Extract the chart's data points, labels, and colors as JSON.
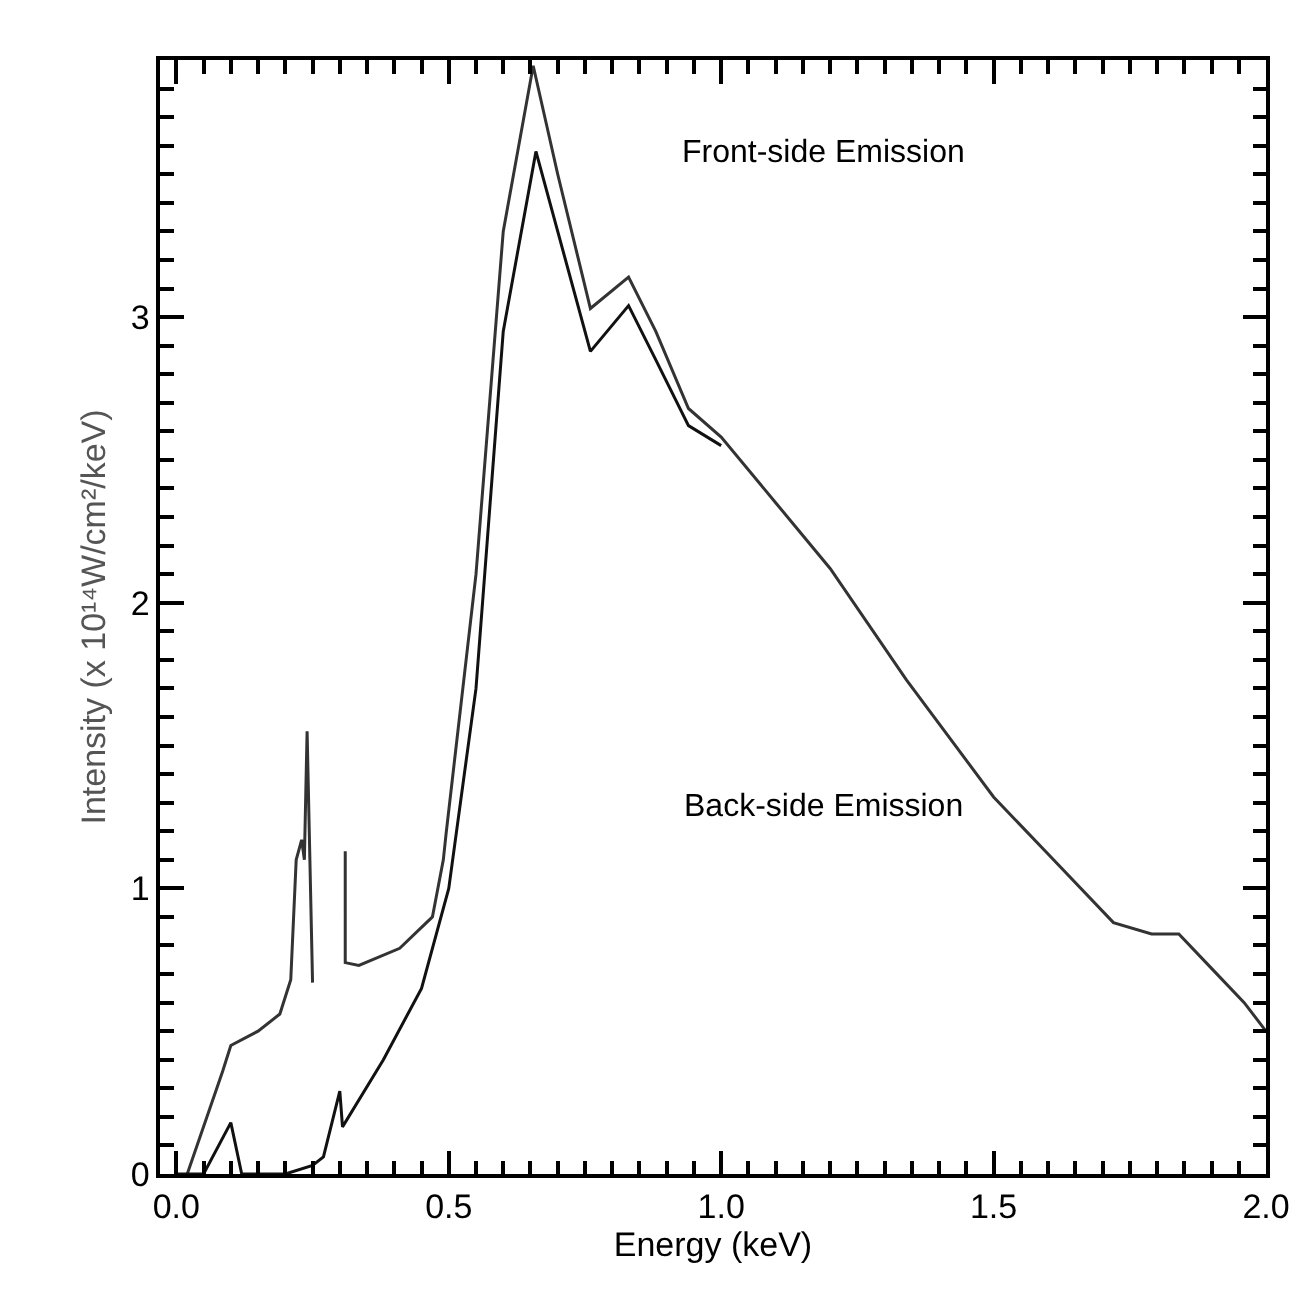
{
  "chart_data": {
    "type": "line",
    "xlabel": "Energy (keV)",
    "ylabel": "Intensity (x 10¹⁴W/cm²/keV)",
    "xlim": [
      -0.03,
      2.0
    ],
    "ylim": [
      0,
      3.9
    ],
    "xticks": [
      {
        "value": 0.0,
        "label": "0.0"
      },
      {
        "value": 0.05,
        "label": null
      },
      {
        "value": 0.1,
        "label": null
      },
      {
        "value": 0.15,
        "label": null
      },
      {
        "value": 0.2,
        "label": null
      },
      {
        "value": 0.25,
        "label": null
      },
      {
        "value": 0.3,
        "label": null
      },
      {
        "value": 0.35,
        "label": null
      },
      {
        "value": 0.4,
        "label": null
      },
      {
        "value": 0.45,
        "label": null
      },
      {
        "value": 0.5,
        "label": "0.5"
      },
      {
        "value": 0.55,
        "label": null
      },
      {
        "value": 0.6,
        "label": null
      },
      {
        "value": 0.65,
        "label": null
      },
      {
        "value": 0.7,
        "label": null
      },
      {
        "value": 0.75,
        "label": null
      },
      {
        "value": 0.8,
        "label": null
      },
      {
        "value": 0.85,
        "label": null
      },
      {
        "value": 0.9,
        "label": null
      },
      {
        "value": 0.95,
        "label": null
      },
      {
        "value": 1.0,
        "label": "1.0"
      },
      {
        "value": 1.05,
        "label": null
      },
      {
        "value": 1.1,
        "label": null
      },
      {
        "value": 1.15,
        "label": null
      },
      {
        "value": 1.2,
        "label": null
      },
      {
        "value": 1.25,
        "label": null
      },
      {
        "value": 1.3,
        "label": null
      },
      {
        "value": 1.35,
        "label": null
      },
      {
        "value": 1.4,
        "label": null
      },
      {
        "value": 1.45,
        "label": null
      },
      {
        "value": 1.5,
        "label": "1.5"
      },
      {
        "value": 1.55,
        "label": null
      },
      {
        "value": 1.6,
        "label": null
      },
      {
        "value": 1.65,
        "label": null
      },
      {
        "value": 1.7,
        "label": null
      },
      {
        "value": 1.75,
        "label": null
      },
      {
        "value": 1.8,
        "label": null
      },
      {
        "value": 1.85,
        "label": null
      },
      {
        "value": 1.9,
        "label": null
      },
      {
        "value": 1.95,
        "label": null
      },
      {
        "value": 2.0,
        "label": "2.0"
      }
    ],
    "yticks": [
      0,
      {
        "value": 0.1,
        "label": null
      },
      {
        "value": 0.2,
        "label": null
      },
      {
        "value": 0.3,
        "label": null
      },
      {
        "value": 0.4,
        "label": null
      },
      {
        "value": 0.5,
        "label": null
      },
      {
        "value": 0.6,
        "label": null
      },
      {
        "value": 0.7,
        "label": null
      },
      {
        "value": 0.8,
        "label": null
      },
      {
        "value": 0.9,
        "label": null
      },
      1,
      {
        "value": 1.1,
        "label": null
      },
      {
        "value": 1.2,
        "label": null
      },
      {
        "value": 1.3,
        "label": null
      },
      {
        "value": 1.4,
        "label": null
      },
      {
        "value": 1.5,
        "label": null
      },
      {
        "value": 1.6,
        "label": null
      },
      {
        "value": 1.7,
        "label": null
      },
      {
        "value": 1.8,
        "label": null
      },
      {
        "value": 1.9,
        "label": null
      },
      2,
      {
        "value": 2.1,
        "label": null
      },
      {
        "value": 2.2,
        "label": null
      },
      {
        "value": 2.3,
        "label": null
      },
      {
        "value": 2.4,
        "label": null
      },
      {
        "value": 2.5,
        "label": null
      },
      {
        "value": 2.6,
        "label": null
      },
      {
        "value": 2.7,
        "label": null
      },
      {
        "value": 2.8,
        "label": null
      },
      {
        "value": 2.9,
        "label": null
      },
      3,
      {
        "value": 3.1,
        "label": null
      },
      {
        "value": 3.2,
        "label": null
      },
      {
        "value": 3.3,
        "label": null
      },
      {
        "value": 3.4,
        "label": null
      },
      {
        "value": 3.5,
        "label": null
      },
      {
        "value": 3.6,
        "label": null
      },
      {
        "value": 3.7,
        "label": null
      },
      {
        "value": 3.8,
        "label": null
      }
    ],
    "marker": "none",
    "line_style": "solid",
    "series": [
      {
        "color": "#333333",
        "x": [
          0.02,
          0.085,
          0.1,
          0.15,
          0.19,
          0.21,
          0.22,
          0.23,
          0.235,
          0.24,
          0.25,
          0.27,
          0.31,
          0.31,
          0.335,
          0.41,
          0.47,
          0.49,
          0.495,
          0.55,
          0.6,
          0.655,
          0.7,
          0.76,
          0.83,
          0.88,
          0.94,
          1.0,
          1.1,
          1.2,
          1.34,
          1.5,
          1.6,
          1.72,
          1.79,
          1.84,
          1.9,
          1.96,
          2.0
        ],
        "values": [
          0,
          0.36,
          0.45,
          0.5,
          0.56,
          0.68,
          1.1,
          1.17,
          1.1,
          1.55,
          0.67,
          null,
          1.13,
          0.74,
          0.73,
          0.79,
          0.9,
          1.1,
          1.19,
          2.1,
          3.3,
          3.88,
          3.5,
          3.03,
          3.14,
          2.95,
          2.68,
          2.58,
          2.35,
          2.12,
          1.73,
          1.32,
          1.12,
          0.88,
          0.84,
          0.84,
          0.72,
          0.6,
          0.5
        ]
      },
      {
        "color": "#111111",
        "x": [
          0.0,
          0.05,
          0.1,
          0.12,
          0.2,
          0.25,
          0.27,
          0.3,
          0.305,
          0.38,
          0.45,
          0.5,
          0.55,
          0.6,
          0.66,
          0.7,
          0.76,
          0.83,
          0.88,
          0.94,
          1.0
        ],
        "values": [
          0,
          0,
          0.18,
          0,
          0,
          0.03,
          0.06,
          0.29,
          0.165,
          0.4,
          0.65,
          1.0,
          1.7,
          2.95,
          3.58,
          3.3,
          2.88,
          3.04,
          2.85,
          2.62,
          2.55
        ]
      }
    ],
    "annotations": [
      "Front-side Emission",
      "Back-side Emission"
    ]
  }
}
